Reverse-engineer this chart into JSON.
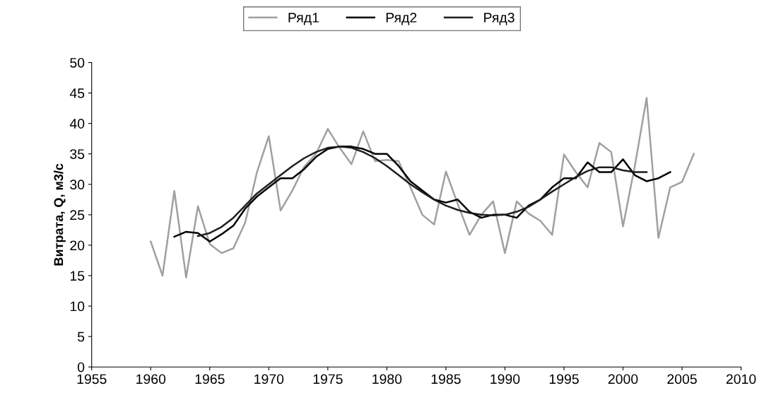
{
  "chart_data": {
    "type": "line",
    "ylabel": "Витрата, Q, м3/с",
    "xlim": [
      1955,
      2010
    ],
    "xticks": [
      1955,
      1960,
      1965,
      1970,
      1975,
      1980,
      1985,
      1990,
      1995,
      2000,
      2005,
      2010
    ],
    "ylim": [
      0,
      50
    ],
    "yticks": [
      0,
      5,
      10,
      15,
      20,
      25,
      30,
      35,
      40,
      45,
      50
    ],
    "grid": false,
    "legend": "top",
    "marker": "none",
    "line_style": "solid",
    "series": [
      {
        "name": "Ряд1",
        "color": "#a0a0a0",
        "x": [
          1960,
          1961,
          1962,
          1963,
          1964,
          1965,
          1966,
          1967,
          1968,
          1969,
          1970,
          1971,
          1972,
          1973,
          1974,
          1975,
          1976,
          1977,
          1978,
          1979,
          1980,
          1981,
          1982,
          1983,
          1984,
          1985,
          1986,
          1987,
          1988,
          1989,
          1990,
          1991,
          1992,
          1993,
          1994,
          1995,
          1996,
          1997,
          1998,
          1999,
          2000,
          2001,
          2002,
          2003,
          2004,
          2005,
          2006
        ],
        "values": [
          20.6,
          15.0,
          28.9,
          14.7,
          26.4,
          20.2,
          18.7,
          19.5,
          23.7,
          32,
          37.9,
          25.7,
          29,
          32.9,
          35,
          39.1,
          36,
          33.3,
          38.7,
          33.8,
          34,
          33.8,
          29.5,
          25,
          23.4,
          32.1,
          26.8,
          21.7,
          25,
          27.2,
          18.7,
          27.2,
          25.2,
          24,
          21.7,
          34.9,
          32,
          29.5,
          36.8,
          35.3,
          23.1,
          33,
          44.2,
          21.2,
          29.5,
          30.4,
          35.0
        ]
      },
      {
        "name": "Ряд2",
        "color": "#000000",
        "x": [
          1962,
          1963,
          1964,
          1965,
          1966,
          1967,
          1968,
          1969,
          1970,
          1971,
          1972,
          1973,
          1974,
          1975,
          1976,
          1977,
          1978,
          1979,
          1980,
          1981,
          1982,
          1983,
          1984,
          1985,
          1986,
          1987,
          1988,
          1989,
          1990,
          1991,
          1992,
          1993,
          1994,
          1995,
          1996,
          1997,
          1998,
          1999,
          2000,
          2001,
          2002,
          2003,
          2004
        ],
        "values": [
          21.4,
          22.2,
          22.0,
          20.6,
          21.8,
          23.2,
          26,
          28,
          29.5,
          31,
          31,
          32.5,
          34.5,
          35.8,
          36.2,
          36.2,
          35.8,
          35,
          35,
          33,
          30.5,
          29,
          27.5,
          27,
          27.5,
          25.5,
          24.5,
          25,
          25,
          24.5,
          26.5,
          27.5,
          29.5,
          31,
          31,
          33.6,
          32,
          32,
          34.1,
          31.5,
          30.5,
          31,
          32
        ]
      },
      {
        "name": "Ряд3",
        "color": "#1e1e1e",
        "x": [
          1964,
          1965,
          1966,
          1967,
          1968,
          1969,
          1970,
          1971,
          1972,
          1973,
          1974,
          1975,
          1976,
          1977,
          1978,
          1979,
          1980,
          1981,
          1982,
          1983,
          1984,
          1985,
          1986,
          1987,
          1988,
          1989,
          1990,
          1991,
          1992,
          1993,
          1994,
          1995,
          1996,
          1997,
          1998,
          1999,
          2000,
          2001,
          2002
        ],
        "values": [
          21.5,
          22,
          23,
          24.5,
          26.5,
          28.5,
          30,
          31.5,
          33,
          34.3,
          35.3,
          36,
          36.2,
          36,
          35.3,
          34.3,
          33,
          31.5,
          30,
          28.7,
          27.5,
          26.5,
          25.8,
          25.3,
          25,
          24.9,
          25,
          25.5,
          26.3,
          27.5,
          28.8,
          30,
          31.2,
          32.2,
          32.8,
          32.8,
          32.3,
          32,
          32
        ]
      }
    ]
  }
}
